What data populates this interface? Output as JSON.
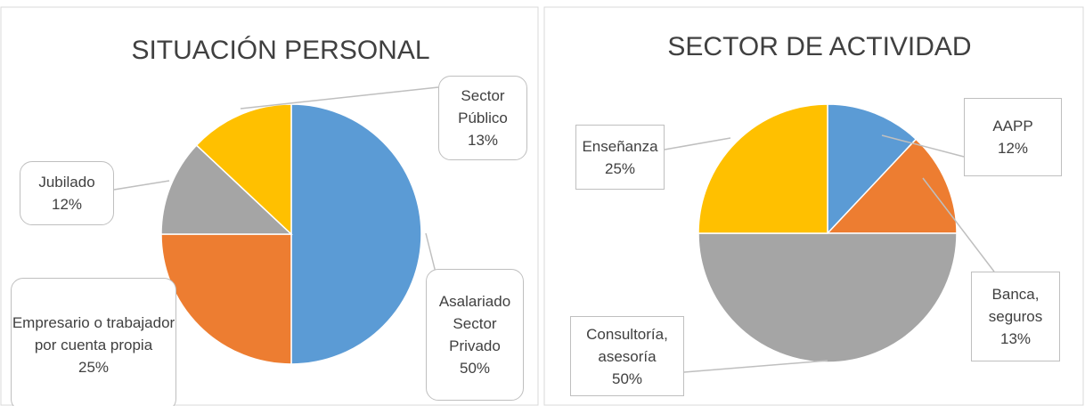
{
  "chart_data": [
    {
      "type": "pie",
      "title": "SITUACIÓN PERSONAL",
      "categories": [
        "Asalariado Sector Privado",
        "Empresario o trabajador por cuenta propia",
        "Jubilado",
        "Sector Público"
      ],
      "values": [
        50,
        25,
        12,
        13
      ],
      "value_labels": [
        "50%",
        "25%",
        "12%",
        "13%"
      ],
      "colors": [
        "#5b9bd5",
        "#ed7d31",
        "#a5a5a5",
        "#ffc000"
      ]
    },
    {
      "type": "pie",
      "title": "SECTOR DE ACTIVIDAD",
      "categories": [
        "AAPP",
        "Banca, seguros",
        "Consultoría, asesoría",
        "Enseñanza"
      ],
      "values": [
        12,
        13,
        50,
        25
      ],
      "value_labels": [
        "12%",
        "13%",
        "50%",
        "25%"
      ],
      "colors": [
        "#5b9bd5",
        "#ed7d31",
        "#a5a5a5",
        "#ffc000"
      ]
    }
  ]
}
